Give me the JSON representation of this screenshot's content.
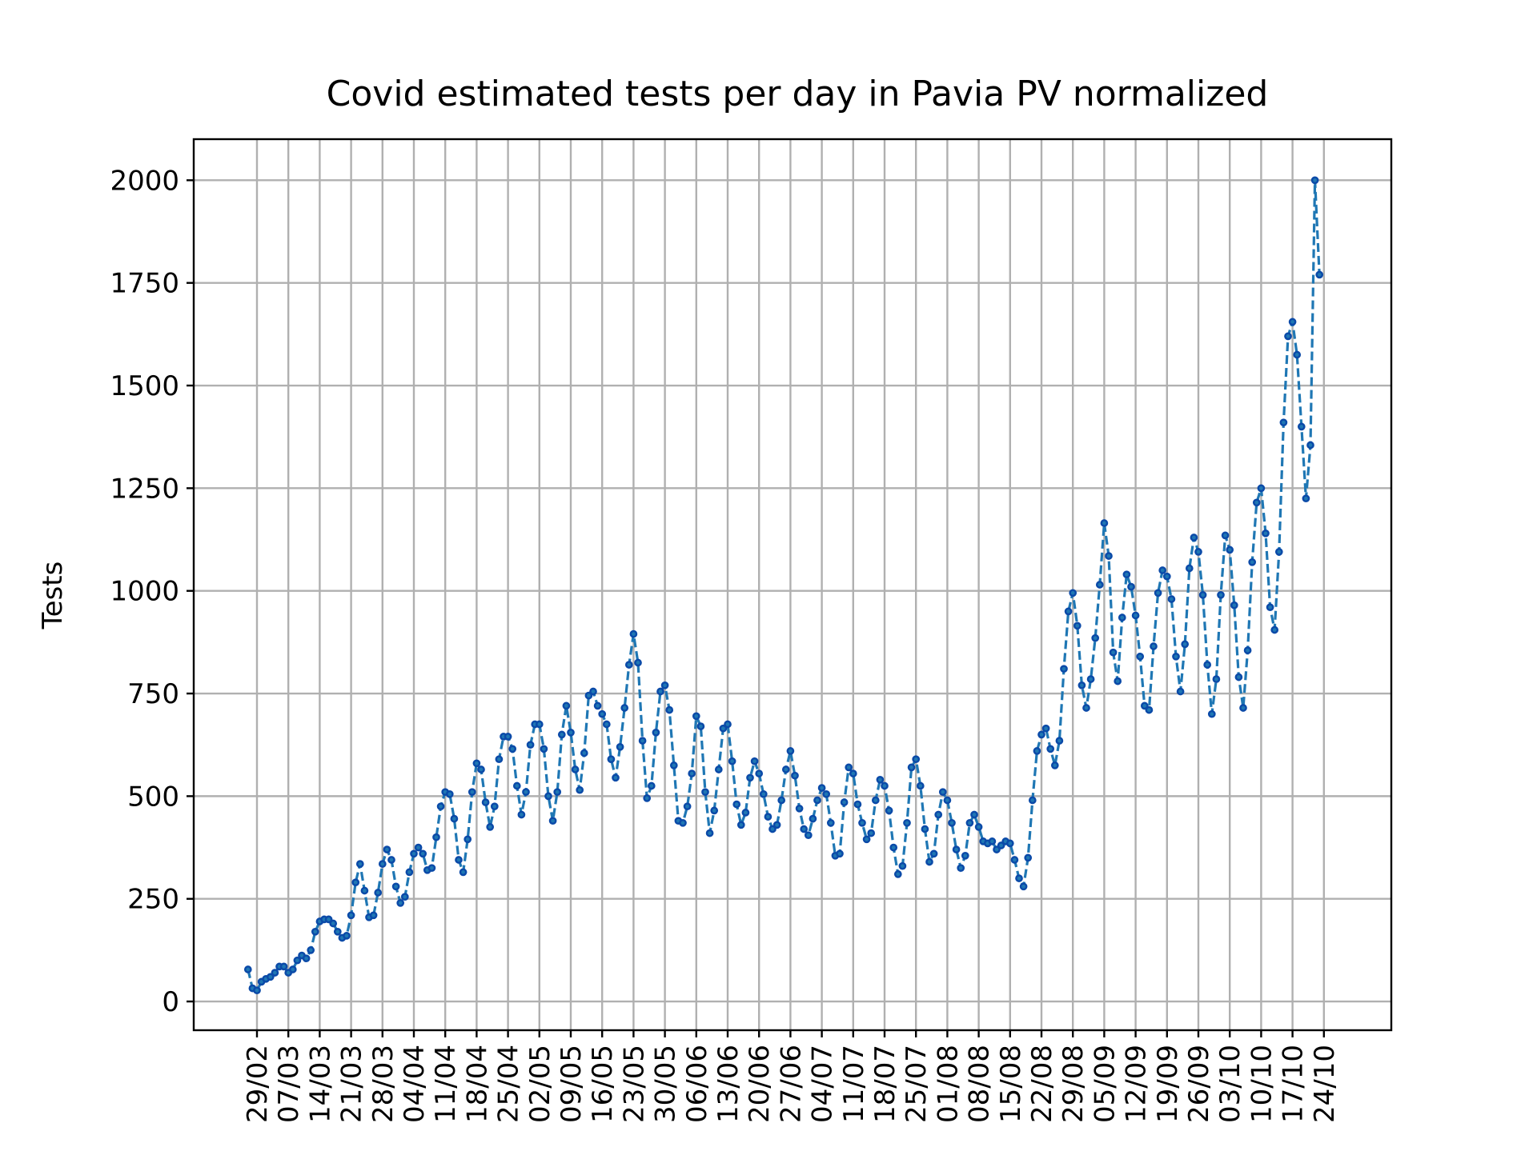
{
  "chart_data": {
    "type": "line",
    "title": "Covid estimated tests per day in Pavia PV normalized",
    "xlabel": "",
    "ylabel": "Tests",
    "ylim": [
      -70,
      2100
    ],
    "yticks": [
      0,
      250,
      500,
      750,
      1000,
      1250,
      1500,
      1750,
      2000
    ],
    "xticks": [
      "29/02",
      "07/03",
      "14/03",
      "21/03",
      "28/03",
      "04/04",
      "11/04",
      "18/04",
      "25/04",
      "02/05",
      "09/05",
      "16/05",
      "23/05",
      "30/05",
      "06/06",
      "13/06",
      "20/06",
      "27/06",
      "04/07",
      "11/07",
      "18/07",
      "25/07",
      "01/08",
      "08/08",
      "15/08",
      "22/08",
      "29/08",
      "05/09",
      "12/09",
      "19/09",
      "26/09",
      "03/10",
      "10/10",
      "17/10",
      "24/10"
    ],
    "x_start": "27/02",
    "x_end": "25/10",
    "grid": true,
    "colors": {
      "line": "#1f77b4",
      "marker": "#0b4aa8"
    },
    "series": [
      {
        "values": [
          78,
          32,
          27,
          48,
          55,
          60,
          70,
          85,
          85,
          70,
          78,
          100,
          112,
          105,
          125,
          170,
          195,
          200,
          200,
          190,
          170,
          155,
          160,
          210,
          290,
          335,
          270,
          205,
          210,
          265,
          335,
          370,
          345,
          280,
          240,
          255,
          315,
          360,
          375,
          360,
          320,
          325,
          400,
          475,
          510,
          505,
          445,
          345,
          315,
          395,
          510,
          580,
          565,
          485,
          425,
          475,
          590,
          645,
          645,
          615,
          525,
          455,
          510,
          625,
          675,
          675,
          615,
          500,
          440,
          510,
          650,
          720,
          655,
          565,
          515,
          605,
          745,
          755,
          720,
          700,
          675,
          590,
          545,
          620,
          715,
          820,
          895,
          825,
          635,
          495,
          525,
          655,
          755,
          770,
          710,
          575,
          440,
          435,
          475,
          555,
          695,
          670,
          510,
          410,
          465,
          565,
          665,
          675,
          585,
          480,
          430,
          460,
          545,
          585,
          555,
          505,
          450,
          420,
          430,
          490,
          565,
          610,
          550,
          470,
          420,
          405,
          445,
          490,
          520,
          505,
          435,
          355,
          360,
          485,
          570,
          555,
          480,
          435,
          395,
          410,
          490,
          540,
          525,
          465,
          375,
          310,
          330,
          435,
          570,
          590,
          525,
          420,
          340,
          360,
          455,
          510,
          490,
          435,
          370,
          325,
          355,
          435,
          455,
          425,
          390,
          385,
          390,
          370,
          380,
          390,
          385,
          345,
          300,
          280,
          350,
          490,
          610,
          650,
          665,
          615,
          575,
          635,
          810,
          950,
          995,
          915,
          770,
          715,
          785,
          885,
          1015,
          1165,
          1085,
          850,
          780,
          935,
          1040,
          1010,
          940,
          840,
          720,
          710,
          865,
          995,
          1050,
          1035,
          980,
          840,
          755,
          870,
          1055,
          1130,
          1095,
          990,
          820,
          700,
          785,
          990,
          1135,
          1100,
          965,
          790,
          715,
          855,
          1070,
          1215,
          1250,
          1140,
          960,
          905,
          1095,
          1410,
          1620,
          1655,
          1575,
          1400,
          1225,
          1355,
          2000,
          1770
        ]
      }
    ]
  }
}
